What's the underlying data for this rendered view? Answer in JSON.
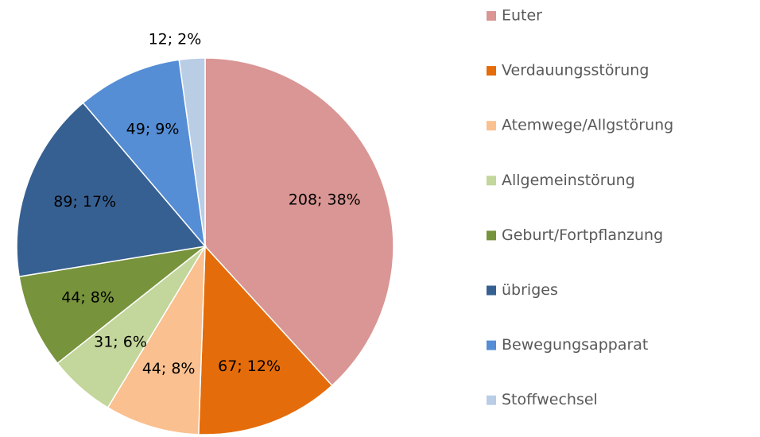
{
  "chart_data": {
    "type": "pie",
    "categories": [
      "Euter",
      "Verdauungsstörung",
      "Atemwege/Allgstörung",
      "Allgemeinstörung",
      "Geburt/Fortpflanzung",
      "übriges",
      "Bewegungsapparat",
      "Stoffwechsel"
    ],
    "values": [
      208,
      67,
      44,
      31,
      44,
      89,
      49,
      12
    ],
    "value_labels": [
      "208; 38%",
      "67; 12%",
      "44; 8%",
      "31; 6%",
      "44; 8%",
      "89; 17%",
      "49; 9%",
      "12; 2%"
    ],
    "colors": [
      "#d99694",
      "#e46c0a",
      "#fac090",
      "#c3d69b",
      "#77933c",
      "#376092",
      "#558ed5",
      "#b9cde5"
    ],
    "legend": "right"
  }
}
